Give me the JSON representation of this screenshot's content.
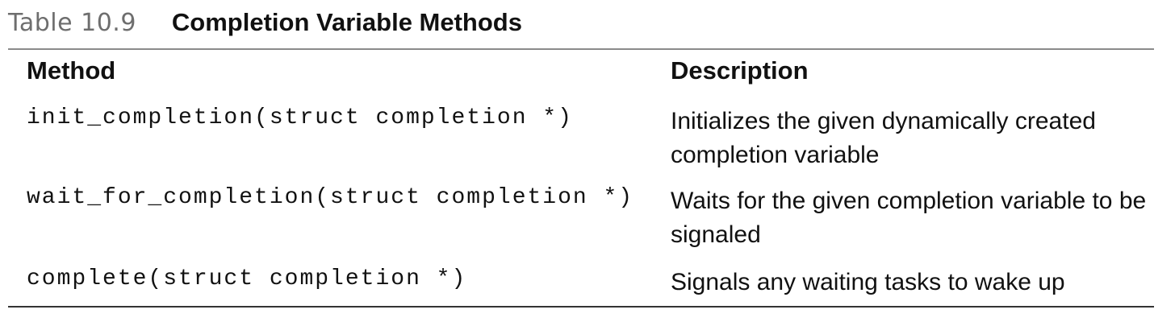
{
  "caption": {
    "number": "Table 10.9",
    "title": "Completion Variable Methods"
  },
  "table": {
    "headers": {
      "method": "Method",
      "description": "Description"
    },
    "rows": [
      {
        "method": "init_completion(struct completion *)",
        "description": "Initializes the given dynamically created completion variable"
      },
      {
        "method": "wait_for_completion(struct completion *)",
        "description": "Waits for the given completion variable to be signaled"
      },
      {
        "method": "complete(struct completion *)",
        "description": "Signals any waiting tasks to wake up"
      }
    ]
  }
}
